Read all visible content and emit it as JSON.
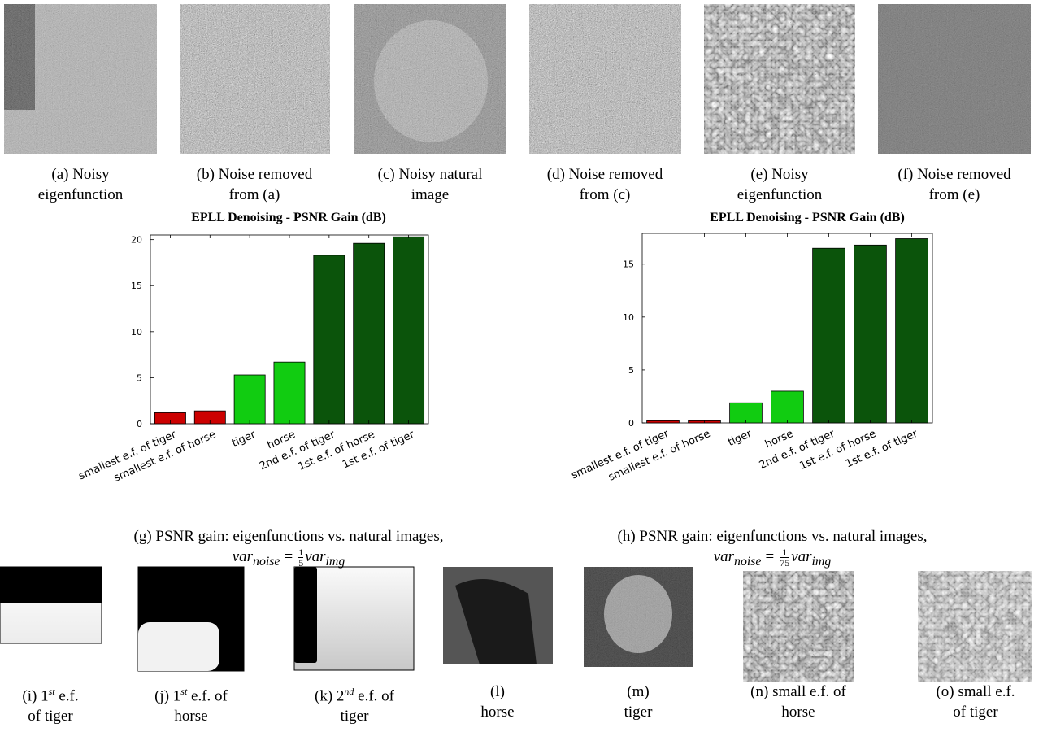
{
  "top_panels": [
    {
      "lines": [
        "(a) Noisy",
        "eigenfunction"
      ]
    },
    {
      "lines": [
        "(b) Noise removed",
        "from (a)"
      ]
    },
    {
      "lines": [
        "(c) Noisy natural",
        "image"
      ]
    },
    {
      "lines": [
        "(d) Noise removed",
        "from (c)"
      ]
    },
    {
      "lines": [
        "(e) Noisy",
        "eigenfunction"
      ]
    },
    {
      "lines": [
        "(f) Noise removed",
        "from (e)"
      ]
    }
  ],
  "chart_data": [
    {
      "type": "bar",
      "title": "EPLL Denoising - PSNR Gain (dB)",
      "categories": [
        "smallest e.f. of tiger",
        "smallest e.f. of horse",
        "tiger",
        "horse",
        "2nd e.f. of tiger",
        "1st e.f. of horse",
        "1st e.f. of tiger"
      ],
      "values": [
        1.2,
        1.4,
        5.3,
        6.7,
        18.3,
        19.6,
        20.3
      ],
      "colors": [
        "#cc0000",
        "#cc0000",
        "#11cc11",
        "#11cc11",
        "#0b540b",
        "#0b540b",
        "#0b540b"
      ],
      "ylim": [
        0,
        20.5
      ],
      "yticks": [
        0,
        5,
        10,
        15,
        20
      ],
      "caption": "(g) PSNR gain: eigenfunctions vs. natural images,",
      "caption_math": {
        "lhs": "var",
        "lhs_sub": "noise",
        "eq": "=",
        "num": "1",
        "den": "5",
        "rhs": "var",
        "rhs_sub": "img"
      }
    },
    {
      "type": "bar",
      "title": "EPLL Denoising - PSNR Gain (dB)",
      "categories": [
        "smallest e.f. of tiger",
        "smallest e.f. of horse",
        "tiger",
        "horse",
        "2nd e.f. of tiger",
        "1st e.f. of horse",
        "1st e.f. of tiger"
      ],
      "values": [
        0.2,
        0.2,
        1.9,
        3.0,
        16.5,
        16.8,
        17.4
      ],
      "colors": [
        "#cc0000",
        "#cc0000",
        "#11cc11",
        "#11cc11",
        "#0b540b",
        "#0b540b",
        "#0b540b"
      ],
      "ylim": [
        0,
        17.9
      ],
      "yticks": [
        0,
        5,
        10,
        15
      ],
      "caption": "(h) PSNR gain: eigenfunctions vs. natural images,",
      "caption_math": {
        "lhs": "var",
        "lhs_sub": "noise",
        "eq": "=",
        "num": "1",
        "den": "75",
        "rhs": "var",
        "rhs_sub": "img"
      }
    }
  ],
  "bottom_panels": [
    {
      "lines": [
        [
          {
            "text": "(i) 1"
          },
          {
            "sup": "st"
          },
          {
            "text": " e.f."
          }
        ],
        "of tiger"
      ]
    },
    {
      "lines": [
        [
          {
            "text": "(j) 1"
          },
          {
            "sup": "st"
          },
          {
            "text": " e.f. of"
          }
        ],
        "horse"
      ]
    },
    {
      "lines": [
        [
          {
            "text": "(k) 2"
          },
          {
            "sup": "nd"
          },
          {
            "text": " e.f. of"
          }
        ],
        "tiger"
      ]
    },
    {
      "lines": [
        "(l)",
        "horse"
      ]
    },
    {
      "lines": [
        "(m)",
        "tiger"
      ]
    },
    {
      "lines": [
        "(n) small e.f. of",
        "horse"
      ]
    },
    {
      "lines": [
        "(o) small e.f.",
        "of tiger"
      ]
    }
  ]
}
